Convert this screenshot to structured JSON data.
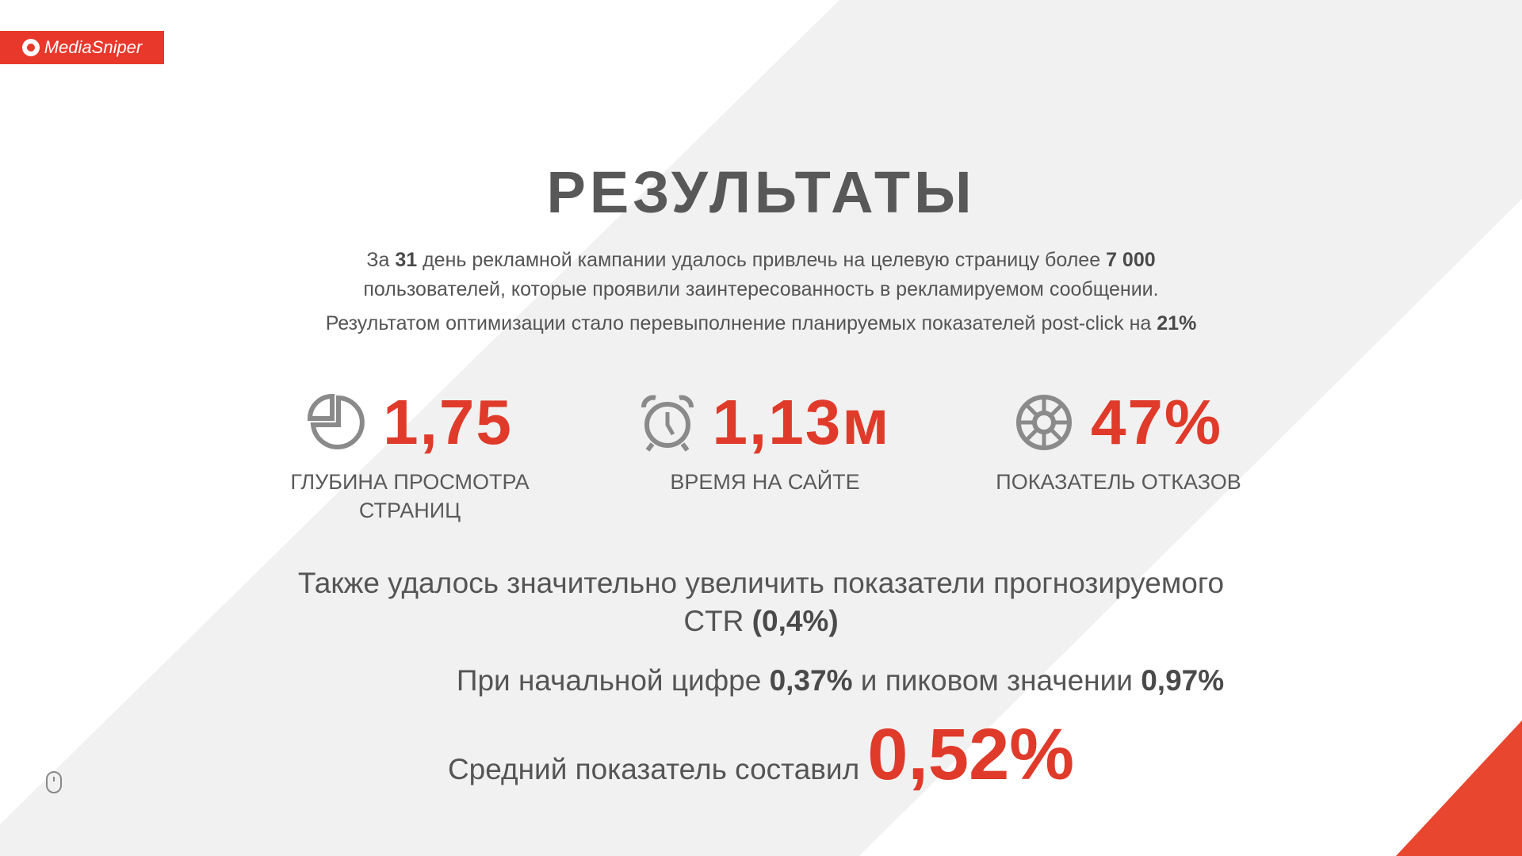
{
  "brand": {
    "name": "MediaSniper",
    "color": "#e8382b"
  },
  "title": "РЕЗУЛЬТАТЫ",
  "intro": {
    "l1a": "За ",
    "l1b": "31",
    "l1c": " день рекламной кампании удалось привлечь на целевую страницу более ",
    "l1d": "7 000",
    "l2": "пользователей, которые проявили заинтересованность в рекламируемом сообщении.",
    "l3a": "Результатом оптимизации стало перевыполнение планируемых показателей post-click на ",
    "l3b": "21%"
  },
  "stats": [
    {
      "icon": "pie-chart-icon",
      "value": "1,75",
      "label": "ГЛУБИНА ПРОСМОТРА СТРАНИЦ"
    },
    {
      "icon": "alarm-clock-icon",
      "value": "1,13м",
      "label": "ВРЕМЯ НА САЙТЕ"
    },
    {
      "icon": "lifebuoy-icon",
      "value": "47%",
      "label": "ПОКАЗАТЕЛЬ ОТКАЗОВ"
    }
  ],
  "ctr": {
    "a": "Также удалось значительно увеличить показатели прогнозируемого",
    "b": "CTR ",
    "c": "(0,4%)"
  },
  "line2": {
    "a": "При начальной цифре ",
    "b": "0,37%",
    "c": " и пиковом значении ",
    "d": "0,97%"
  },
  "line3": {
    "a": "Средний показатель составил",
    "b": "0,52%"
  },
  "accent": "#e03a2a"
}
